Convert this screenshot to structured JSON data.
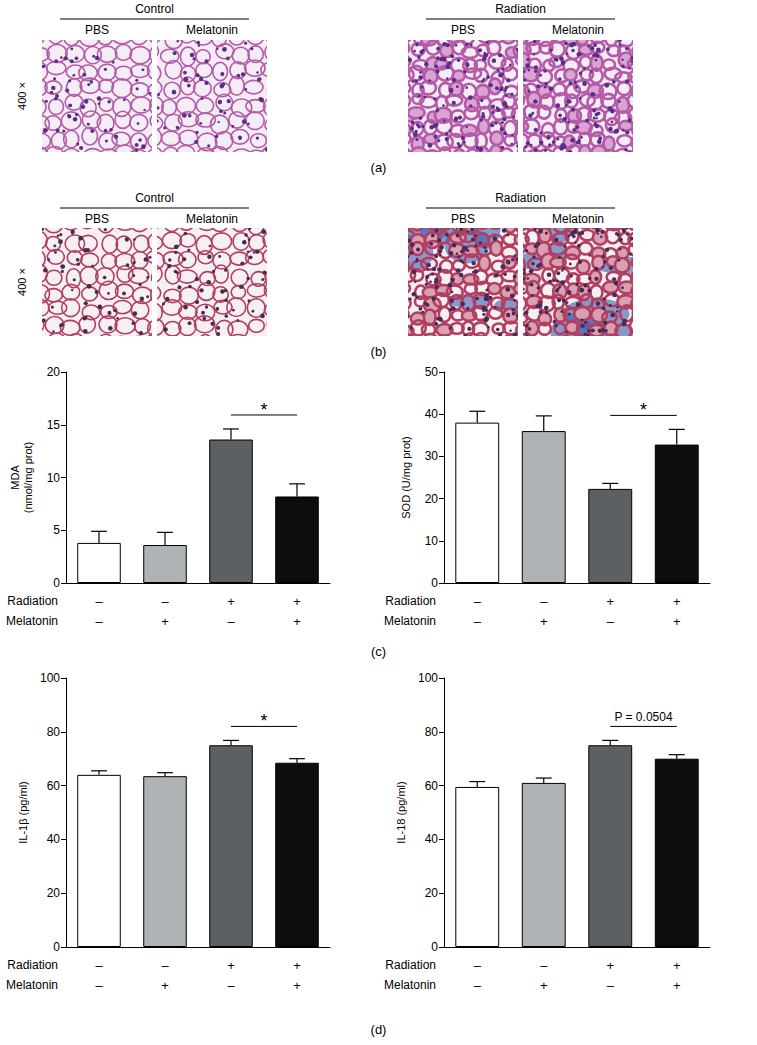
{
  "image_panels": [
    {
      "label": "(a)",
      "magnification": "400 ×",
      "groups": [
        {
          "title": "Control",
          "columns": [
            "PBS",
            "Melatonin"
          ]
        },
        {
          "title": "Radiation",
          "columns": [
            "PBS",
            "Melatonin"
          ]
        }
      ]
    },
    {
      "label": "(b)",
      "magnification": "400 ×",
      "groups": [
        {
          "title": "Control",
          "columns": [
            "PBS",
            "Melatonin"
          ]
        },
        {
          "title": "Radiation",
          "columns": [
            "PBS",
            "Melatonin"
          ]
        }
      ]
    }
  ],
  "chart_panel_labels": [
    "(c)",
    "(d)"
  ],
  "chart_data": [
    {
      "type": "bar",
      "ylabel": "MDA\n(nmol/mg prot)",
      "categories": [
        null,
        null,
        null,
        null
      ],
      "conditions": [
        {
          "name": "Radiation",
          "values": [
            "–",
            "–",
            "+",
            "+"
          ]
        },
        {
          "name": "Melatonin",
          "values": [
            "–",
            "+",
            "–",
            "+"
          ]
        }
      ],
      "values": [
        3.8,
        3.6,
        13.6,
        8.2
      ],
      "errors": [
        1.1,
        1.2,
        1.0,
        1.2
      ],
      "colors": [
        "#ffffff",
        "#aeb3b6",
        "#5b6163",
        "#0d0d0d"
      ],
      "ylim": [
        0,
        20
      ],
      "yticks": [
        0,
        5,
        10,
        15,
        20
      ],
      "grid": false,
      "annotations": [
        "*"
      ]
    },
    {
      "type": "bar",
      "ylabel": "SOD (U/mg prot)",
      "categories": [
        null,
        null,
        null,
        null
      ],
      "conditions": [
        {
          "name": "Radiation",
          "values": [
            "–",
            "–",
            "+",
            "+"
          ]
        },
        {
          "name": "Melatonin",
          "values": [
            "–",
            "+",
            "–",
            "+"
          ]
        }
      ],
      "values": [
        38,
        36,
        22.3,
        32.8
      ],
      "errors": [
        2.7,
        3.6,
        1.3,
        3.6
      ],
      "colors": [
        "#ffffff",
        "#aeb3b6",
        "#5b6163",
        "#0d0d0d"
      ],
      "ylim": [
        0,
        50
      ],
      "yticks": [
        0,
        10,
        20,
        30,
        40,
        50
      ],
      "grid": false,
      "annotations": [
        "*"
      ]
    },
    {
      "type": "bar",
      "ylabel": "IL-1β (pg/ml)",
      "categories": [
        null,
        null,
        null,
        null
      ],
      "conditions": [
        {
          "name": "Radiation",
          "values": [
            "–",
            "–",
            "+",
            "+"
          ]
        },
        {
          "name": "Melatonin",
          "values": [
            "–",
            "+",
            "–",
            "+"
          ]
        }
      ],
      "values": [
        64,
        63.5,
        75,
        68.5
      ],
      "errors": [
        1.5,
        1.3,
        1.8,
        1.5
      ],
      "colors": [
        "#ffffff",
        "#aeb3b6",
        "#5b6163",
        "#0d0d0d"
      ],
      "ylim": [
        0,
        100
      ],
      "yticks": [
        0,
        20,
        40,
        60,
        80,
        100
      ],
      "grid": false,
      "annotations": [
        "*"
      ]
    },
    {
      "type": "bar",
      "ylabel": "IL-18 (pg/ml)",
      "categories": [
        null,
        null,
        null,
        null
      ],
      "conditions": [
        {
          "name": "Radiation",
          "values": [
            "–",
            "–",
            "+",
            "+"
          ]
        },
        {
          "name": "Melatonin",
          "values": [
            "–",
            "+",
            "–",
            "+"
          ]
        }
      ],
      "values": [
        59.5,
        61,
        75,
        70
      ],
      "errors": [
        2.0,
        1.8,
        1.8,
        1.5
      ],
      "colors": [
        "#ffffff",
        "#aeb3b6",
        "#5b6163",
        "#0d0d0d"
      ],
      "ylim": [
        0,
        100
      ],
      "yticks": [
        0,
        20,
        40,
        60,
        80,
        100
      ],
      "grid": false,
      "annotations": [
        "P = 0.0504"
      ]
    }
  ]
}
